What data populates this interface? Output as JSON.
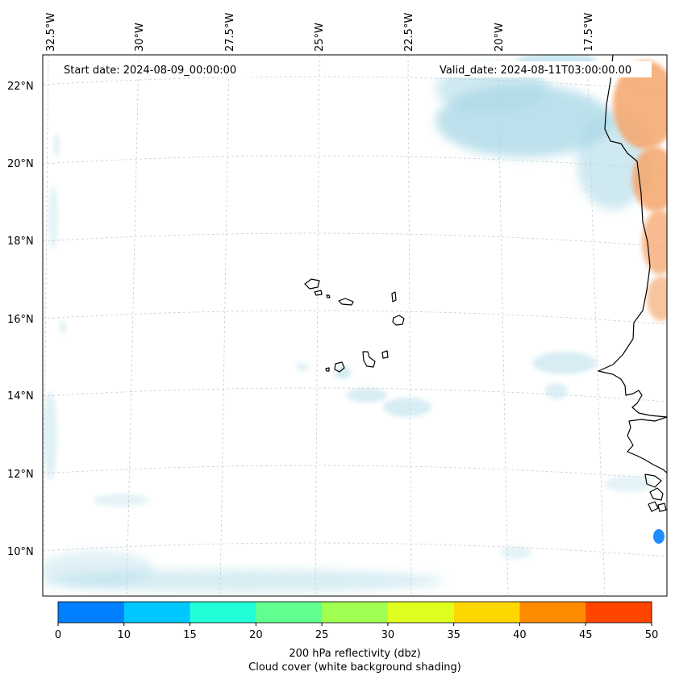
{
  "map": {
    "start_date": "Start date: 2024-08-09_00:00:00",
    "valid_date": "Valid_date: 2024-08-11T03:00:00.00",
    "lon_labels": [
      "32.5°W",
      "30°W",
      "27.5°W",
      "25°W",
      "22.5°W",
      "20°W",
      "17.5°W"
    ],
    "lat_labels": [
      "22°N",
      "20°N",
      "18°N",
      "16°N",
      "14°N",
      "12°N",
      "10°N"
    ]
  },
  "colorbar": {
    "ticks": [
      "0",
      "10",
      "15",
      "20",
      "25",
      "30",
      "35",
      "40",
      "45",
      "50"
    ],
    "colors": [
      "#0080ff",
      "#00c8ff",
      "#20ffd8",
      "#60ff90",
      "#a0ff50",
      "#e0ff20",
      "#ffd700",
      "#ff8c00",
      "#ff4500"
    ],
    "label_line1": "200 hPa reflectivity (dbz)",
    "label_line2": "Cloud cover (white background shading)"
  },
  "colors": {
    "cloud": "#a8d8e6",
    "reflectivity_high": "#f5a56a",
    "reflectivity_blue": "#1e8cff",
    "coast": "#000000",
    "grid": "#cccccc"
  }
}
